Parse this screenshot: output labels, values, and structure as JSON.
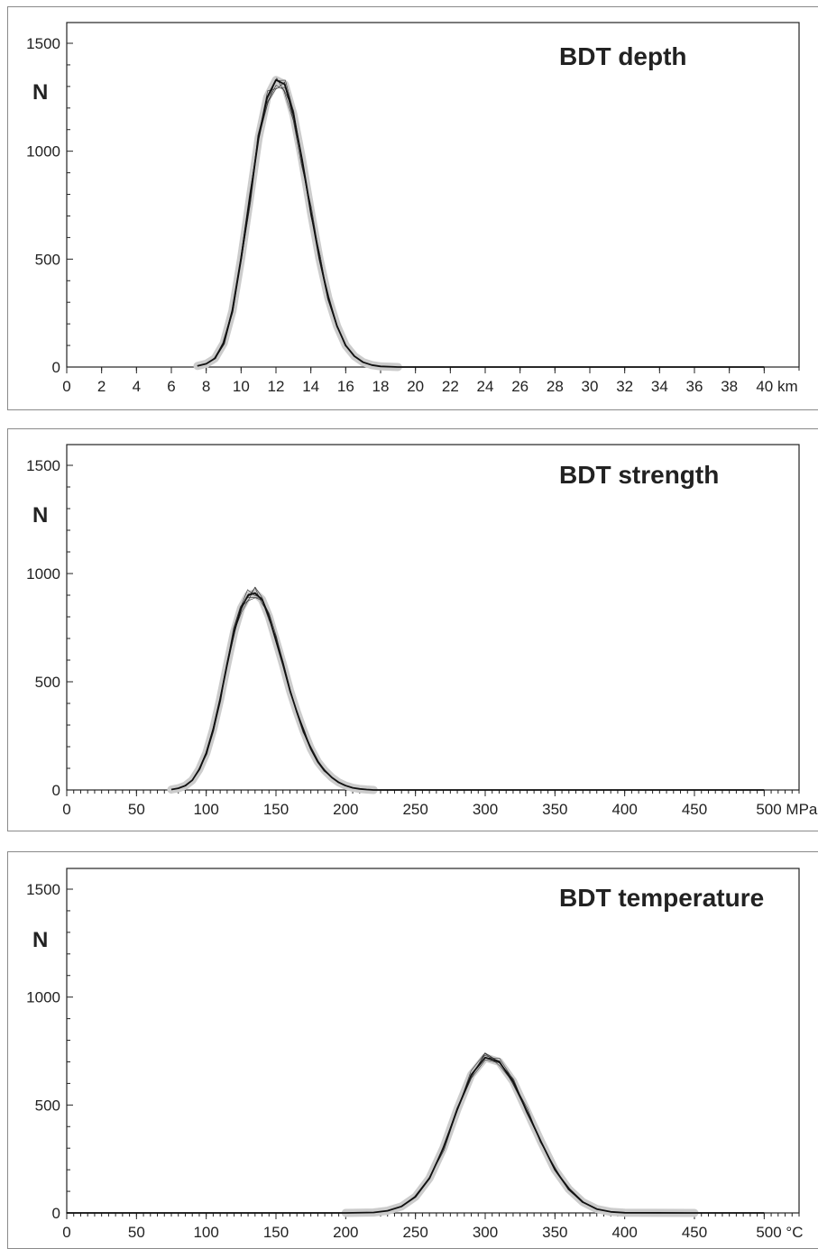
{
  "chart_data": [
    {
      "type": "line",
      "title": "BDT depth",
      "ylabel": "N",
      "xlabel": "",
      "ylim": [
        0,
        1500
      ],
      "xlim": [
        0,
        42
      ],
      "yticks": [
        "0",
        "500",
        "1000",
        "1500"
      ],
      "ytick_values": [
        0,
        500,
        1000,
        1500
      ],
      "xticks": [
        "0",
        "2",
        "4",
        "6",
        "8",
        "10",
        "12",
        "14",
        "16",
        "18",
        "20",
        "22",
        "24",
        "26",
        "28",
        "30",
        "32",
        "34",
        "36",
        "38",
        "40 km"
      ],
      "xtick_values": [
        0,
        2,
        4,
        6,
        8,
        10,
        12,
        14,
        16,
        18,
        20,
        22,
        24,
        26,
        28,
        30,
        32,
        34,
        36,
        38,
        40
      ],
      "x": [
        7.5,
        8,
        8.5,
        9,
        9.5,
        10,
        10.5,
        11,
        11.5,
        12,
        12.5,
        13,
        13.5,
        14,
        14.5,
        15,
        15.5,
        16,
        16.5,
        17,
        17.5,
        18,
        19,
        20,
        25,
        30,
        40
      ],
      "series": [
        {
          "values": [
            5,
            15,
            40,
            110,
            260,
            500,
            780,
            1060,
            1250,
            1330,
            1310,
            1170,
            960,
            720,
            500,
            320,
            190,
            100,
            50,
            22,
            9,
            3,
            0,
            0,
            0,
            0,
            0
          ]
        }
      ]
    },
    {
      "type": "line",
      "title": "BDT strength",
      "ylabel": "N",
      "xlabel": "",
      "ylim": [
        0,
        1500
      ],
      "xlim": [
        0,
        525
      ],
      "yticks": [
        "0",
        "500",
        "1000",
        "1500"
      ],
      "ytick_values": [
        0,
        500,
        1000,
        1500
      ],
      "xticks": [
        "0",
        "50",
        "100",
        "150",
        "200",
        "250",
        "300",
        "350",
        "400",
        "450",
        "500 MPa"
      ],
      "xtick_values": [
        0,
        50,
        100,
        150,
        200,
        250,
        300,
        350,
        400,
        450,
        500
      ],
      "x": [
        75,
        80,
        85,
        90,
        95,
        100,
        105,
        110,
        115,
        120,
        125,
        130,
        135,
        140,
        145,
        150,
        155,
        160,
        165,
        170,
        175,
        180,
        185,
        190,
        195,
        200,
        205,
        210,
        215,
        220,
        240,
        300,
        500
      ],
      "series": [
        {
          "values": [
            2,
            8,
            20,
            45,
            95,
            170,
            280,
            420,
            580,
            730,
            840,
            900,
            910,
            880,
            800,
            690,
            580,
            460,
            360,
            270,
            190,
            130,
            90,
            58,
            35,
            20,
            10,
            5,
            2,
            0,
            0,
            0,
            0
          ]
        }
      ]
    },
    {
      "type": "line",
      "title": "BDT temperature",
      "ylabel": "N",
      "xlabel": "",
      "ylim": [
        0,
        1500
      ],
      "xlim": [
        0,
        525
      ],
      "yticks": [
        "0",
        "500",
        "1000",
        "1500"
      ],
      "ytick_values": [
        0,
        500,
        1000,
        1500
      ],
      "xticks": [
        "0",
        "50",
        "100",
        "150",
        "200",
        "250",
        "300",
        "350",
        "400",
        "450",
        "500 °C"
      ],
      "xtick_values": [
        0,
        50,
        100,
        150,
        200,
        250,
        300,
        350,
        400,
        450,
        500
      ],
      "x": [
        0,
        100,
        200,
        220,
        230,
        240,
        250,
        260,
        270,
        280,
        290,
        300,
        310,
        320,
        330,
        340,
        350,
        360,
        370,
        380,
        390,
        400,
        450,
        500
      ],
      "series": [
        {
          "values": [
            0,
            0,
            0,
            2,
            10,
            30,
            75,
            160,
            300,
            480,
            640,
            720,
            700,
            610,
            470,
            330,
            200,
            110,
            50,
            18,
            5,
            1,
            0,
            0
          ]
        }
      ]
    }
  ]
}
